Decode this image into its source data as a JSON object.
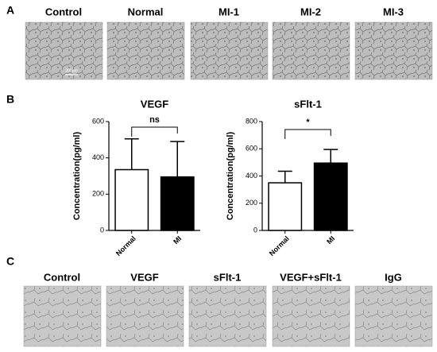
{
  "panels": {
    "a": "A",
    "b": "B",
    "c": "C"
  },
  "images_a": [
    {
      "label": "Control"
    },
    {
      "label": "Normal"
    },
    {
      "label": "MI-1"
    },
    {
      "label": "MI-2"
    },
    {
      "label": "MI-3"
    }
  ],
  "scale_bar": "200μm",
  "images_c": [
    {
      "label": "Control"
    },
    {
      "label": "VEGF"
    },
    {
      "label": "sFlt-1"
    },
    {
      "label": "VEGF+sFlt-1"
    },
    {
      "label": "IgG"
    }
  ],
  "chart_data": [
    {
      "type": "bar",
      "title": "VEGF",
      "ylabel": "Concentration(pg/ml)",
      "categories": [
        "Normal",
        "MI"
      ],
      "values": [
        335,
        295
      ],
      "errors": [
        170,
        195
      ],
      "colors": [
        "#ffffff",
        "#000000"
      ],
      "ylim": [
        0,
        600
      ],
      "yticks": [
        0,
        200,
        400,
        600
      ],
      "annotation": "ns"
    },
    {
      "type": "bar",
      "title": "sFlt-1",
      "ylabel": "Concentration(pg/ml)",
      "categories": [
        "Normal",
        "MI"
      ],
      "values": [
        350,
        495
      ],
      "errors": [
        85,
        100
      ],
      "colors": [
        "#ffffff",
        "#000000"
      ],
      "ylim": [
        0,
        800
      ],
      "yticks": [
        0,
        200,
        400,
        600,
        800
      ],
      "annotation": "*"
    }
  ]
}
